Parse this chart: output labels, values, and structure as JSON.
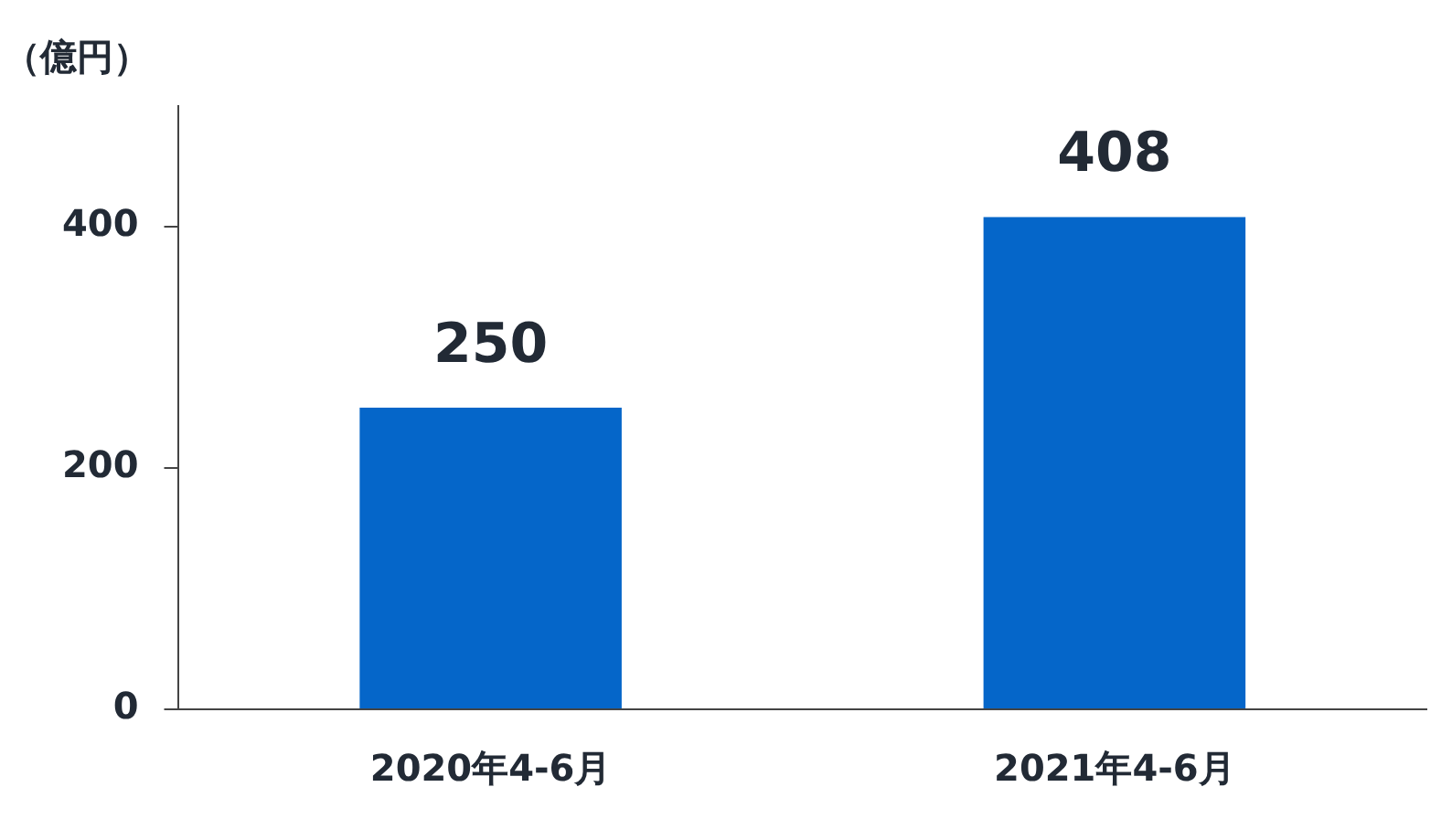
{
  "chart_data": {
    "type": "bar",
    "ylabel": "（億円）",
    "categories": [
      "2020年4-6月",
      "2021年4-6月"
    ],
    "values": [
      250,
      408
    ],
    "color": "#0566c9",
    "ylim": [
      0,
      500
    ],
    "yticks": [
      0,
      200,
      400
    ],
    "grid": false,
    "legend": false,
    "data_labels": true
  }
}
